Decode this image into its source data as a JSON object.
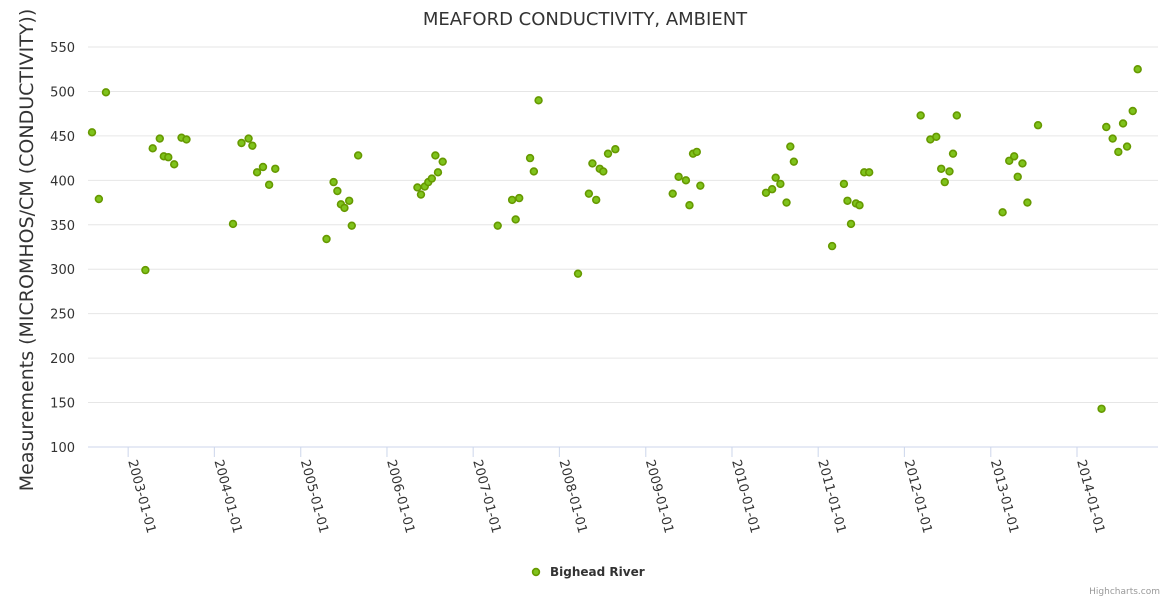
{
  "chart_data": {
    "type": "scatter",
    "title": "MEAFORD CONDUCTIVITY, AMBIENT",
    "ylabel": "Measurements (MICROMHOS/CM (CONDUCTIVITY))",
    "xlabel": "",
    "ylim": [
      100,
      550
    ],
    "yticks": [
      100,
      150,
      200,
      250,
      300,
      350,
      400,
      450,
      500,
      550
    ],
    "xlim": [
      "2002-07-15",
      "2014-12-10"
    ],
    "xticks": [
      "2003-01-01",
      "2004-01-01",
      "2005-01-01",
      "2006-01-01",
      "2007-01-01",
      "2008-01-01",
      "2009-01-01",
      "2010-01-01",
      "2011-01-01",
      "2012-01-01",
      "2013-01-01",
      "2014-01-01"
    ],
    "legend_position": "bottom-center",
    "grid": true,
    "series": [
      {
        "name": "Bighead River",
        "color": "#669900",
        "points": [
          [
            "2002-08-01",
            454
          ],
          [
            "2002-08-30",
            379
          ],
          [
            "2002-09-29",
            499
          ],
          [
            "2003-03-15",
            299
          ],
          [
            "2003-04-15",
            436
          ],
          [
            "2003-05-15",
            447
          ],
          [
            "2003-06-01",
            427
          ],
          [
            "2003-06-20",
            426
          ],
          [
            "2003-07-15",
            418
          ],
          [
            "2003-08-15",
            448
          ],
          [
            "2003-09-05",
            446
          ],
          [
            "2004-03-20",
            351
          ],
          [
            "2004-04-25",
            442
          ],
          [
            "2004-05-25",
            447
          ],
          [
            "2004-06-10",
            439
          ],
          [
            "2004-06-30",
            409
          ],
          [
            "2004-07-25",
            415
          ],
          [
            "2004-08-20",
            395
          ],
          [
            "2004-09-15",
            413
          ],
          [
            "2005-04-20",
            334
          ],
          [
            "2005-05-20",
            398
          ],
          [
            "2005-06-05",
            388
          ],
          [
            "2005-06-20",
            373
          ],
          [
            "2005-07-05",
            369
          ],
          [
            "2005-07-25",
            377
          ],
          [
            "2005-08-05",
            349
          ],
          [
            "2005-09-01",
            428
          ],
          [
            "2006-05-10",
            392
          ],
          [
            "2006-05-25",
            384
          ],
          [
            "2006-06-10",
            393
          ],
          [
            "2006-06-25",
            398
          ],
          [
            "2006-07-10",
            402
          ],
          [
            "2006-07-25",
            428
          ],
          [
            "2006-08-05",
            409
          ],
          [
            "2006-08-25",
            421
          ],
          [
            "2007-04-15",
            349
          ],
          [
            "2007-06-15",
            378
          ],
          [
            "2007-06-30",
            356
          ],
          [
            "2007-07-15",
            380
          ],
          [
            "2007-08-30",
            425
          ],
          [
            "2007-09-15",
            410
          ],
          [
            "2007-10-05",
            490
          ],
          [
            "2008-03-20",
            295
          ],
          [
            "2008-05-05",
            385
          ],
          [
            "2008-05-20",
            419
          ],
          [
            "2008-06-05",
            378
          ],
          [
            "2008-06-20",
            413
          ],
          [
            "2008-07-05",
            410
          ],
          [
            "2008-07-25",
            430
          ],
          [
            "2008-08-25",
            435
          ],
          [
            "2009-04-25",
            385
          ],
          [
            "2009-05-20",
            404
          ],
          [
            "2009-06-20",
            400
          ],
          [
            "2009-07-05",
            372
          ],
          [
            "2009-07-20",
            430
          ],
          [
            "2009-08-05",
            432
          ],
          [
            "2009-08-20",
            394
          ],
          [
            "2010-05-25",
            386
          ],
          [
            "2010-06-20",
            390
          ],
          [
            "2010-07-05",
            403
          ],
          [
            "2010-07-25",
            396
          ],
          [
            "2010-08-20",
            375
          ],
          [
            "2010-09-05",
            438
          ],
          [
            "2010-09-20",
            421
          ],
          [
            "2011-03-01",
            326
          ],
          [
            "2011-04-20",
            396
          ],
          [
            "2011-05-05",
            377
          ],
          [
            "2011-05-20",
            351
          ],
          [
            "2011-06-10",
            374
          ],
          [
            "2011-06-25",
            372
          ],
          [
            "2011-07-15",
            409
          ],
          [
            "2011-08-05",
            409
          ],
          [
            "2012-03-10",
            473
          ],
          [
            "2012-04-20",
            446
          ],
          [
            "2012-05-15",
            449
          ],
          [
            "2012-06-05",
            413
          ],
          [
            "2012-06-20",
            398
          ],
          [
            "2012-07-10",
            410
          ],
          [
            "2012-07-25",
            430
          ],
          [
            "2012-08-10",
            473
          ],
          [
            "2013-02-20",
            364
          ],
          [
            "2013-03-20",
            422
          ],
          [
            "2013-04-10",
            427
          ],
          [
            "2013-04-25",
            404
          ],
          [
            "2013-05-15",
            419
          ],
          [
            "2013-06-05",
            375
          ],
          [
            "2013-07-20",
            462
          ],
          [
            "2014-04-15",
            143
          ],
          [
            "2014-05-05",
            460
          ],
          [
            "2014-06-01",
            447
          ],
          [
            "2014-06-25",
            432
          ],
          [
            "2014-07-15",
            464
          ],
          [
            "2014-08-01",
            438
          ],
          [
            "2014-08-25",
            478
          ],
          [
            "2014-09-15",
            525
          ]
        ]
      }
    ],
    "credits": "Highcharts.com"
  }
}
